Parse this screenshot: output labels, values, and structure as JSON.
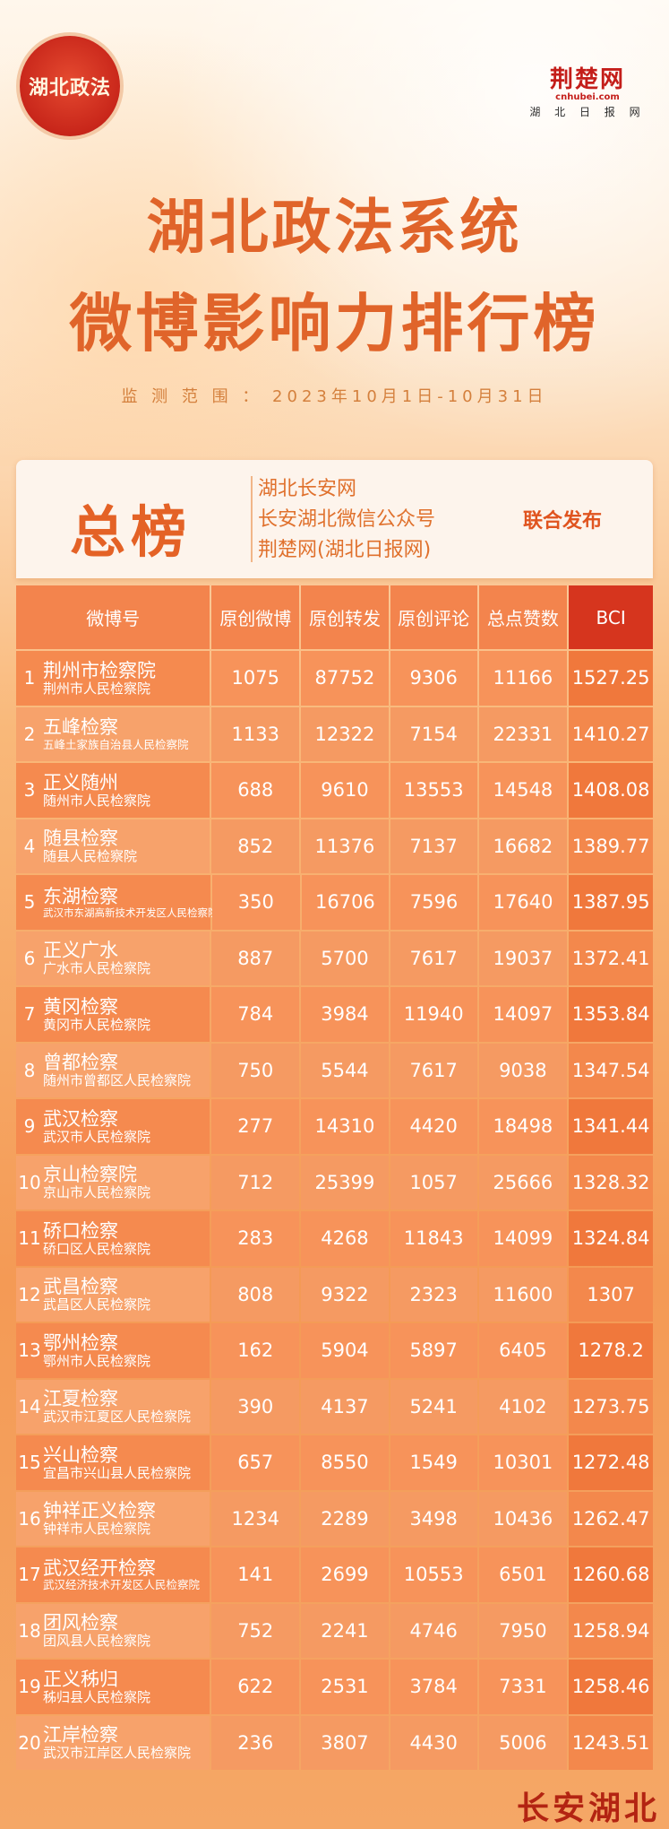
{
  "logo_left": {
    "text": "湖北政法"
  },
  "logo_right": {
    "brand": "荆楚网",
    "en": "cnhubei.com",
    "cn": "湖 北 日 报 网"
  },
  "title_line1": "湖北政法系统",
  "title_line2": "微博影响力排行榜",
  "period": "监 测 范 围 ： 2023年10月1日-10月31日",
  "header": {
    "label": "总榜",
    "publishers": [
      "湖北长安网",
      "长安湖北微信公众号",
      "荆楚网(湖北日报网)"
    ],
    "joint": "联合发布"
  },
  "columns": [
    "微博号",
    "原创微博",
    "原创转发",
    "原创评论",
    "总点赞数",
    "BCI"
  ],
  "rows": [
    {
      "rank": "1",
      "name": "荆州市检察院",
      "org": "荆州市人民检察院",
      "weibo": "1075",
      "forward": "87752",
      "comment": "9306",
      "likes": "11166",
      "bci": "1527.25"
    },
    {
      "rank": "2",
      "name": "五峰检察",
      "org": "五峰土家族自治县人民检察院",
      "weibo": "1133",
      "forward": "12322",
      "comment": "7154",
      "likes": "22331",
      "bci": "1410.27"
    },
    {
      "rank": "3",
      "name": "正义随州",
      "org": "随州市人民检察院",
      "weibo": "688",
      "forward": "9610",
      "comment": "13553",
      "likes": "14548",
      "bci": "1408.08"
    },
    {
      "rank": "4",
      "name": "随县检察",
      "org": "随县人民检察院",
      "weibo": "852",
      "forward": "11376",
      "comment": "7137",
      "likes": "16682",
      "bci": "1389.77"
    },
    {
      "rank": "5",
      "name": "东湖检察",
      "org": "武汉市东湖高新技术开发区人民检察院",
      "weibo": "350",
      "forward": "16706",
      "comment": "7596",
      "likes": "17640",
      "bci": "1387.95"
    },
    {
      "rank": "6",
      "name": "正义广水",
      "org": "广水市人民检察院",
      "weibo": "887",
      "forward": "5700",
      "comment": "7617",
      "likes": "19037",
      "bci": "1372.41"
    },
    {
      "rank": "7",
      "name": "黄冈检察",
      "org": "黄冈市人民检察院",
      "weibo": "784",
      "forward": "3984",
      "comment": "11940",
      "likes": "14097",
      "bci": "1353.84"
    },
    {
      "rank": "8",
      "name": "曾都检察",
      "org": "随州市曾都区人民检察院",
      "weibo": "750",
      "forward": "5544",
      "comment": "7617",
      "likes": "9038",
      "bci": "1347.54"
    },
    {
      "rank": "9",
      "name": "武汉检察",
      "org": "武汉市人民检察院",
      "weibo": "277",
      "forward": "14310",
      "comment": "4420",
      "likes": "18498",
      "bci": "1341.44"
    },
    {
      "rank": "10",
      "name": "京山检察院",
      "org": "京山市人民检察院",
      "weibo": "712",
      "forward": "25399",
      "comment": "1057",
      "likes": "25666",
      "bci": "1328.32"
    },
    {
      "rank": "11",
      "name": "硚口检察",
      "org": "硚口区人民检察院",
      "weibo": "283",
      "forward": "4268",
      "comment": "11843",
      "likes": "14099",
      "bci": "1324.84"
    },
    {
      "rank": "12",
      "name": "武昌检察",
      "org": "武昌区人民检察院",
      "weibo": "808",
      "forward": "9322",
      "comment": "2323",
      "likes": "11600",
      "bci": "1307"
    },
    {
      "rank": "13",
      "name": "鄂州检察",
      "org": "鄂州市人民检察院",
      "weibo": "162",
      "forward": "5904",
      "comment": "5897",
      "likes": "6405",
      "bci": "1278.2"
    },
    {
      "rank": "14",
      "name": "江夏检察",
      "org": "武汉市江夏区人民检察院",
      "weibo": "390",
      "forward": "4137",
      "comment": "5241",
      "likes": "4102",
      "bci": "1273.75"
    },
    {
      "rank": "15",
      "name": "兴山检察",
      "org": "宜昌市兴山县人民检察院",
      "weibo": "657",
      "forward": "8550",
      "comment": "1549",
      "likes": "10301",
      "bci": "1272.48"
    },
    {
      "rank": "16",
      "name": "钟祥正义检察",
      "org": "钟祥市人民检察院",
      "weibo": "1234",
      "forward": "2289",
      "comment": "3498",
      "likes": "10436",
      "bci": "1262.47"
    },
    {
      "rank": "17",
      "name": "武汉经开检察",
      "org": "武汉经济技术开发区人民检察院",
      "weibo": "141",
      "forward": "2699",
      "comment": "10553",
      "likes": "6501",
      "bci": "1260.68"
    },
    {
      "rank": "18",
      "name": "团风检察",
      "org": "团风县人民检察院",
      "weibo": "752",
      "forward": "2241",
      "comment": "4746",
      "likes": "7950",
      "bci": "1258.94"
    },
    {
      "rank": "19",
      "name": "正义秭归",
      "org": "秭归县人民检察院",
      "weibo": "622",
      "forward": "2531",
      "comment": "3784",
      "likes": "7331",
      "bci": "1258.46"
    },
    {
      "rank": "20",
      "name": "江岸检察",
      "org": "武汉市江岸区人民检察院",
      "weibo": "236",
      "forward": "3807",
      "comment": "4430",
      "likes": "5006",
      "bci": "1243.51"
    }
  ],
  "footer_mark": "长安湖北"
}
